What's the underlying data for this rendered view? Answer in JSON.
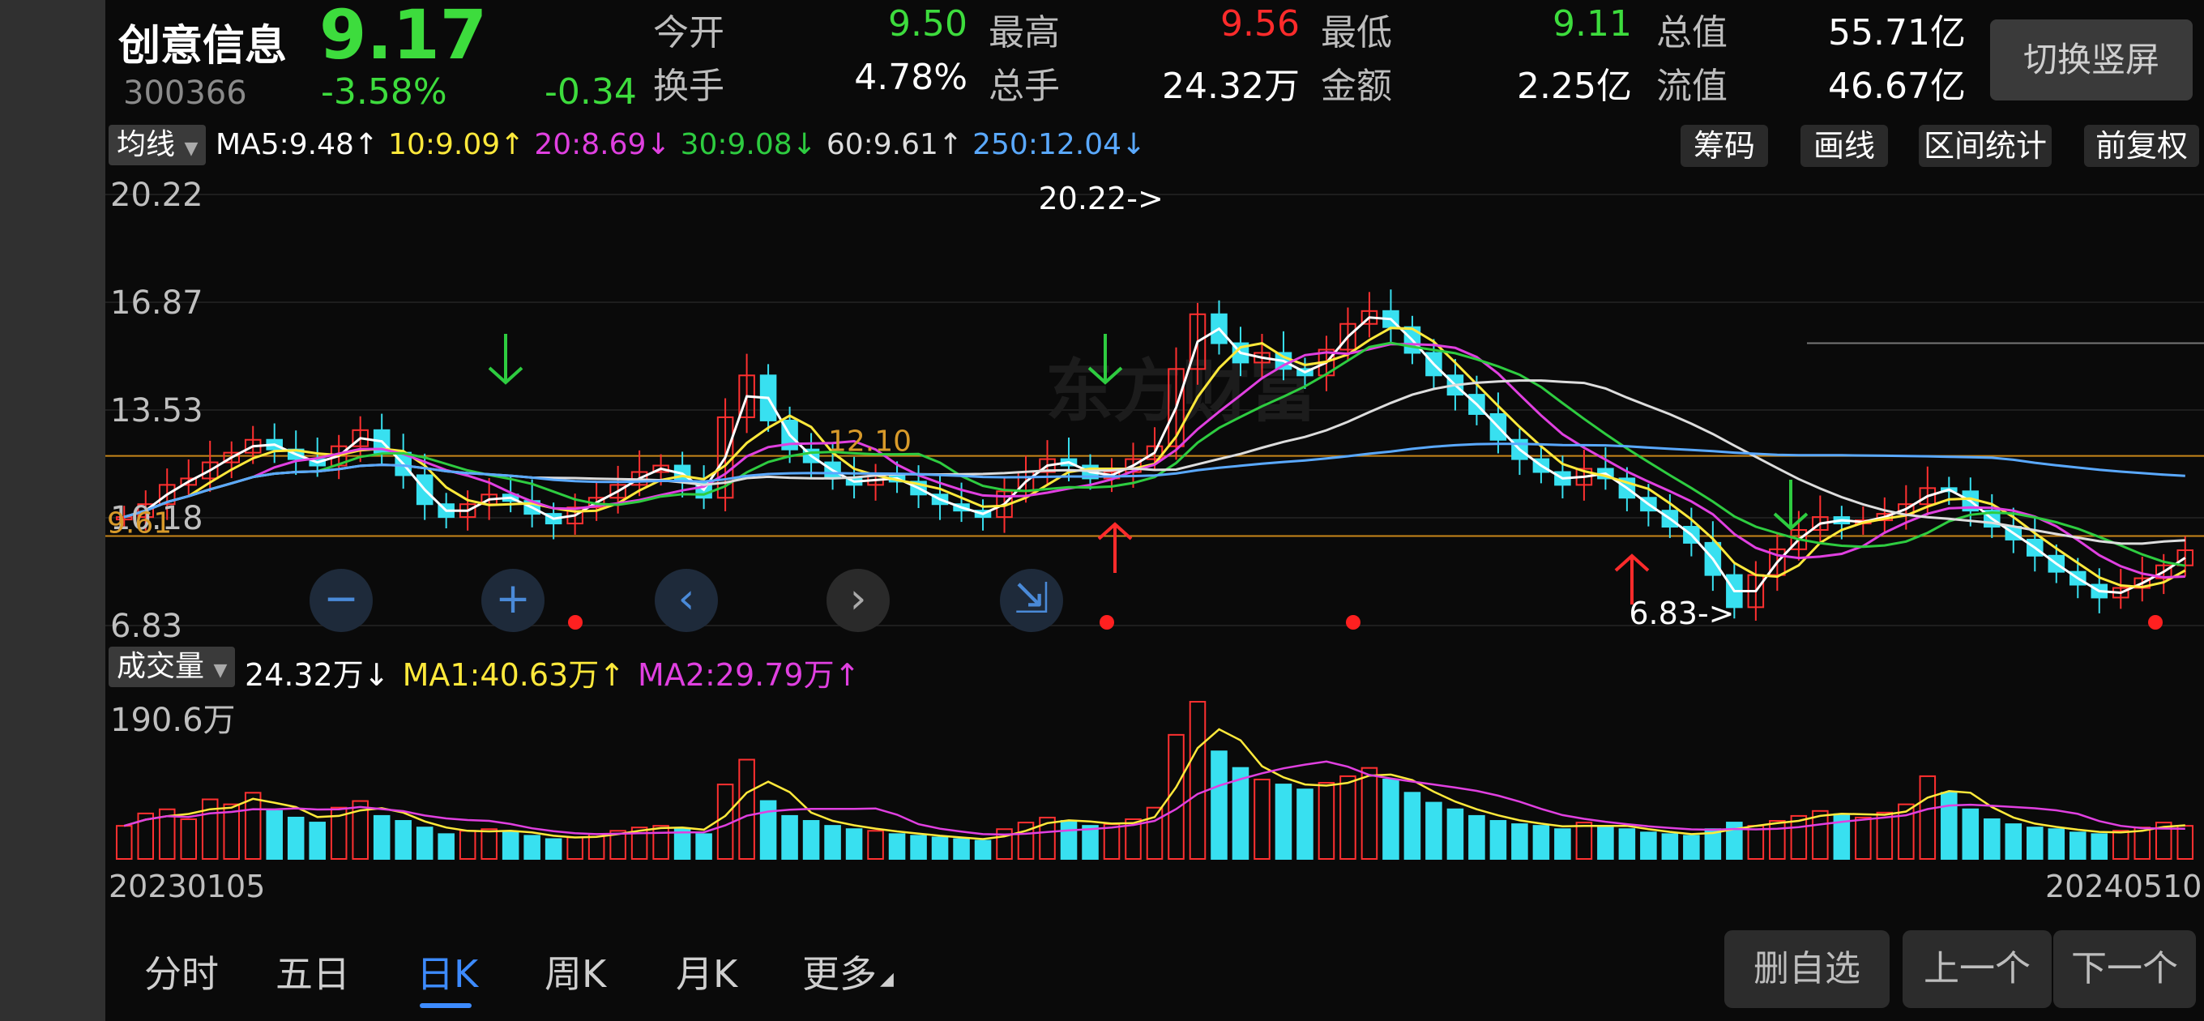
{
  "header": {
    "stock_name": "创意信息",
    "price": "9.17",
    "code": "300366",
    "change_pct": "-3.58%",
    "change_amt": "-0.34",
    "switch_label": "切换竖屏",
    "stats": [
      {
        "label": "今开",
        "value": "9.50",
        "color": "#3ddc3d"
      },
      {
        "label": "最高",
        "value": "9.56",
        "color": "#ff2b2b"
      },
      {
        "label": "最低",
        "value": "9.11",
        "color": "#3ddc3d"
      },
      {
        "label": "总值",
        "value": "55.71亿",
        "color": "#ffffff"
      },
      {
        "label": "换手",
        "value": "4.78%",
        "color": "#ffffff"
      },
      {
        "label": "总手",
        "value": "24.32万",
        "color": "#ffffff"
      },
      {
        "label": "金额",
        "value": "2.25亿",
        "color": "#ffffff"
      },
      {
        "label": "流值",
        "value": "46.67亿",
        "color": "#ffffff"
      }
    ]
  },
  "ma_bar": {
    "selector": "均线",
    "items": [
      {
        "text": "MA5:9.48↑",
        "color": "#ffffff"
      },
      {
        "text": "10:9.09↑",
        "color": "#ffe93b"
      },
      {
        "text": "20:8.69↓",
        "color": "#e040e0"
      },
      {
        "text": "30:9.08↓",
        "color": "#2ecc40"
      },
      {
        "text": "60:9.61↑",
        "color": "#dddddd"
      },
      {
        "text": "250:12.04↓",
        "color": "#5aa9ff"
      }
    ],
    "buttons": [
      "筹码",
      "画线",
      "区间统计",
      "前复权"
    ]
  },
  "kline": {
    "y_labels": [
      "20.22",
      "16.87",
      "13.53",
      "10.18",
      "6.83"
    ],
    "max_marker": "20.22->",
    "min_marker": "6.83->",
    "level_left": "9.61",
    "level_mid": "12.10",
    "watermark": "东方财富"
  },
  "volume_bar": {
    "selector": "成交量",
    "items": [
      {
        "text": "24.32万↓",
        "color": "#ffffff"
      },
      {
        "text": "MA1:40.63万↑",
        "color": "#ffe93b"
      },
      {
        "text": "MA2:29.79万↑",
        "color": "#e040e0"
      }
    ],
    "y_label": "190.6万"
  },
  "dates": {
    "start": "20230105",
    "end": "20240510"
  },
  "tabs": [
    {
      "label": "分时",
      "active": false
    },
    {
      "label": "五日",
      "active": false
    },
    {
      "label": "日K",
      "active": true
    },
    {
      "label": "周K",
      "active": false
    },
    {
      "label": "月K",
      "active": false
    },
    {
      "label": "更多",
      "active": false
    }
  ],
  "actions": [
    "删自选",
    "上一个",
    "下一个"
  ],
  "chart_data": {
    "type": "candlestick",
    "y_range": [
      6.83,
      20.22
    ],
    "start_date": "20230105",
    "end_date": "20240510",
    "close_series": [
      10.2,
      10.6,
      11.2,
      11.4,
      11.9,
      12.2,
      12.6,
      12.3,
      12.0,
      11.8,
      12.4,
      12.9,
      12.2,
      11.5,
      10.6,
      10.2,
      10.6,
      10.9,
      10.7,
      10.3,
      10.0,
      10.5,
      10.8,
      11.2,
      11.6,
      11.8,
      11.3,
      10.8,
      13.3,
      14.6,
      13.2,
      12.3,
      11.9,
      11.4,
      11.2,
      11.5,
      11.3,
      10.9,
      10.6,
      10.4,
      10.2,
      11.0,
      11.6,
      12.0,
      11.8,
      11.4,
      11.6,
      12.0,
      12.4,
      14.8,
      16.5,
      15.6,
      15.0,
      15.3,
      14.8,
      14.6,
      15.4,
      16.2,
      16.6,
      16.1,
      15.3,
      14.6,
      14.0,
      13.4,
      12.6,
      12.0,
      11.6,
      11.2,
      11.7,
      11.4,
      10.8,
      10.4,
      9.9,
      9.4,
      8.4,
      7.4,
      8.4,
      9.2,
      9.8,
      10.2,
      10.0,
      10.1,
      10.3,
      10.6,
      11.1,
      11.0,
      10.4,
      9.9,
      9.5,
      9.0,
      8.5,
      8.1,
      7.7,
      8.0,
      8.3,
      8.7,
      9.17
    ],
    "ma_series": [
      {
        "name": "MA5",
        "color": "#ffffff"
      },
      {
        "name": "MA10",
        "color": "#ffe93b"
      },
      {
        "name": "MA20",
        "color": "#e040e0"
      },
      {
        "name": "MA30",
        "color": "#2ecc40"
      },
      {
        "name": "MA60",
        "color": "#dddddd"
      },
      {
        "name": "MA250",
        "color": "#5aa9ff"
      }
    ],
    "volume_max_label": "190.6万",
    "volume_series": [
      40,
      55,
      60,
      48,
      72,
      66,
      80,
      58,
      50,
      44,
      62,
      70,
      52,
      46,
      38,
      30,
      34,
      36,
      32,
      28,
      24,
      26,
      30,
      34,
      38,
      40,
      36,
      30,
      90,
      120,
      70,
      52,
      46,
      40,
      36,
      34,
      30,
      28,
      26,
      24,
      22,
      36,
      44,
      50,
      46,
      40,
      42,
      48,
      62,
      150,
      190,
      130,
      110,
      96,
      90,
      84,
      92,
      100,
      110,
      96,
      80,
      68,
      60,
      52,
      46,
      42,
      40,
      36,
      44,
      40,
      36,
      32,
      30,
      28,
      36,
      44,
      40,
      46,
      52,
      58,
      54,
      50,
      56,
      66,
      100,
      80,
      60,
      48,
      42,
      38,
      36,
      32,
      30,
      34,
      38,
      44,
      40
    ]
  }
}
